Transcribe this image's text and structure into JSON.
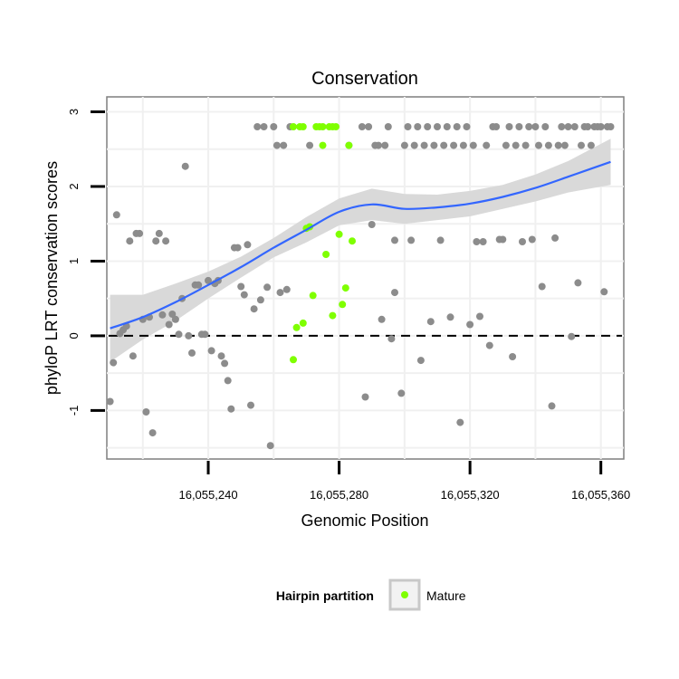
{
  "chart_data": {
    "type": "scatter",
    "title": "Conservation",
    "xlabel": "Genomic Position",
    "ylabel": "phyloP LRT conservation scores",
    "xlim": [
      16055209,
      16055367
    ],
    "ylim": [
      -1.65,
      3.2
    ],
    "x_ticks": [
      16055240,
      16055280,
      16055320,
      16055360
    ],
    "x_tick_labels": [
      "16,055,240",
      "16,055,280",
      "16,055,320",
      "16,055,360"
    ],
    "y_ticks": [
      -1,
      0,
      1,
      2,
      3
    ],
    "y_tick_labels": [
      "-1",
      "0",
      "1",
      "2",
      "3"
    ],
    "grid": true,
    "reference_line": {
      "y": 0,
      "style": "dashed"
    },
    "legend": {
      "title": "Hairpin partition",
      "placement": "bottom",
      "entries": [
        {
          "label": "Mature",
          "color": "#7fff00"
        }
      ]
    },
    "colors": {
      "other": "#8c8c8c",
      "mature": "#7fff00",
      "smooth": "#3366ff",
      "ribbon": "#d9d9d9"
    },
    "series": [
      {
        "name": "",
        "color": "#8c8c8c",
        "points": [
          [
            16055210,
            -0.88
          ],
          [
            16055211,
            -0.36
          ],
          [
            16055212,
            1.62
          ],
          [
            16055213,
            0.03
          ],
          [
            16055214,
            0.08
          ],
          [
            16055215,
            0.13
          ],
          [
            16055216,
            1.27
          ],
          [
            16055217,
            -0.27
          ],
          [
            16055218,
            1.37
          ],
          [
            16055219,
            1.37
          ],
          [
            16055220,
            0.22
          ],
          [
            16055221,
            -1.02
          ],
          [
            16055222,
            0.25
          ],
          [
            16055223,
            -1.3
          ],
          [
            16055224,
            1.27
          ],
          [
            16055225,
            1.37
          ],
          [
            16055226,
            0.28
          ],
          [
            16055227,
            1.27
          ],
          [
            16055228,
            0.15
          ],
          [
            16055229,
            0.29
          ],
          [
            16055230,
            0.22
          ],
          [
            16055231,
            0.02
          ],
          [
            16055232,
            0.5
          ],
          [
            16055233,
            2.27
          ],
          [
            16055234,
            0.0
          ],
          [
            16055235,
            -0.23
          ],
          [
            16055236,
            0.68
          ],
          [
            16055237,
            0.68
          ],
          [
            16055238,
            0.02
          ],
          [
            16055239,
            0.02
          ],
          [
            16055240,
            0.74
          ],
          [
            16055241,
            -0.2
          ],
          [
            16055242,
            0.7
          ],
          [
            16055243,
            0.74
          ],
          [
            16055244,
            -0.27
          ],
          [
            16055245,
            -0.37
          ],
          [
            16055246,
            -0.6
          ],
          [
            16055247,
            -0.98
          ],
          [
            16055248,
            1.18
          ],
          [
            16055249,
            1.18
          ],
          [
            16055250,
            0.66
          ],
          [
            16055251,
            0.55
          ],
          [
            16055252,
            1.22
          ],
          [
            16055253,
            -0.93
          ],
          [
            16055254,
            0.36
          ],
          [
            16055255,
            2.8
          ],
          [
            16055256,
            0.48
          ],
          [
            16055257,
            2.8
          ],
          [
            16055258,
            0.65
          ],
          [
            16055259,
            -1.47
          ],
          [
            16055260,
            2.8
          ],
          [
            16055261,
            2.55
          ],
          [
            16055262,
            0.58
          ],
          [
            16055263,
            2.55
          ],
          [
            16055264,
            0.62
          ],
          [
            16055265,
            2.8
          ],
          [
            16055271,
            2.55
          ],
          [
            16055283,
            2.55
          ],
          [
            16055287,
            2.8
          ],
          [
            16055288,
            -0.82
          ],
          [
            16055289,
            2.8
          ],
          [
            16055290,
            1.49
          ],
          [
            16055291,
            2.55
          ],
          [
            16055292,
            2.55
          ],
          [
            16055293,
            0.22
          ],
          [
            16055294,
            2.55
          ],
          [
            16055295,
            2.8
          ],
          [
            16055296,
            -0.04
          ],
          [
            16055297,
            0.58
          ],
          [
            16055297,
            1.28
          ],
          [
            16055299,
            -0.77
          ],
          [
            16055300,
            2.55
          ],
          [
            16055301,
            2.8
          ],
          [
            16055302,
            1.28
          ],
          [
            16055303,
            2.55
          ],
          [
            16055304,
            2.8
          ],
          [
            16055305,
            -0.33
          ],
          [
            16055306,
            2.55
          ],
          [
            16055307,
            2.8
          ],
          [
            16055308,
            0.19
          ],
          [
            16055309,
            2.55
          ],
          [
            16055310,
            2.8
          ],
          [
            16055311,
            1.28
          ],
          [
            16055312,
            2.55
          ],
          [
            16055313,
            2.8
          ],
          [
            16055314,
            0.25
          ],
          [
            16055315,
            2.55
          ],
          [
            16055316,
            2.8
          ],
          [
            16055317,
            -1.16
          ],
          [
            16055318,
            2.55
          ],
          [
            16055319,
            2.8
          ],
          [
            16055320,
            0.15
          ],
          [
            16055321,
            2.55
          ],
          [
            16055322,
            1.26
          ],
          [
            16055323,
            0.26
          ],
          [
            16055324,
            1.26
          ],
          [
            16055325,
            2.55
          ],
          [
            16055326,
            -0.13
          ],
          [
            16055327,
            2.8
          ],
          [
            16055328,
            2.8
          ],
          [
            16055329,
            1.29
          ],
          [
            16055330,
            1.29
          ],
          [
            16055331,
            2.55
          ],
          [
            16055332,
            2.8
          ],
          [
            16055333,
            -0.28
          ],
          [
            16055334,
            2.55
          ],
          [
            16055335,
            2.8
          ],
          [
            16055336,
            1.26
          ],
          [
            16055337,
            2.55
          ],
          [
            16055338,
            2.8
          ],
          [
            16055339,
            1.29
          ],
          [
            16055340,
            2.8
          ],
          [
            16055341,
            2.55
          ],
          [
            16055342,
            0.66
          ],
          [
            16055343,
            2.8
          ],
          [
            16055344,
            2.55
          ],
          [
            16055345,
            -0.94
          ],
          [
            16055346,
            1.31
          ],
          [
            16055347,
            2.55
          ],
          [
            16055348,
            2.8
          ],
          [
            16055349,
            2.55
          ],
          [
            16055350,
            2.8
          ],
          [
            16055351,
            -0.01
          ],
          [
            16055352,
            2.8
          ],
          [
            16055353,
            0.71
          ],
          [
            16055354,
            2.55
          ],
          [
            16055355,
            2.8
          ],
          [
            16055356,
            2.8
          ],
          [
            16055357,
            2.55
          ],
          [
            16055358,
            2.8
          ],
          [
            16055359,
            2.8
          ],
          [
            16055360,
            2.8
          ],
          [
            16055361,
            0.59
          ],
          [
            16055362,
            2.8
          ],
          [
            16055363,
            2.8
          ]
        ]
      },
      {
        "name": "Mature",
        "color": "#7fff00",
        "points": [
          [
            16055266,
            -0.32
          ],
          [
            16055266,
            2.8
          ],
          [
            16055267,
            0.11
          ],
          [
            16055268,
            2.8
          ],
          [
            16055269,
            2.8
          ],
          [
            16055269,
            0.17
          ],
          [
            16055270,
            1.44
          ],
          [
            16055271,
            1.46
          ],
          [
            16055272,
            0.54
          ],
          [
            16055273,
            2.8
          ],
          [
            16055274,
            2.8
          ],
          [
            16055275,
            2.8
          ],
          [
            16055275,
            2.55
          ],
          [
            16055276,
            1.09
          ],
          [
            16055277,
            2.8
          ],
          [
            16055278,
            2.8
          ],
          [
            16055278,
            0.27
          ],
          [
            16055279,
            2.8
          ],
          [
            16055280,
            1.36
          ],
          [
            16055281,
            0.42
          ],
          [
            16055282,
            0.64
          ],
          [
            16055283,
            2.55
          ],
          [
            16055284,
            1.27
          ]
        ]
      }
    ],
    "smooth": {
      "x": [
        16055210,
        16055220,
        16055230,
        16055240,
        16055250,
        16055260,
        16055270,
        16055280,
        16055290,
        16055300,
        16055310,
        16055320,
        16055330,
        16055340,
        16055350,
        16055363
      ],
      "y": [
        0.1,
        0.25,
        0.45,
        0.68,
        0.92,
        1.18,
        1.42,
        1.66,
        1.76,
        1.7,
        1.72,
        1.77,
        1.86,
        1.98,
        2.13,
        2.33
      ],
      "lower": [
        -0.35,
        -0.05,
        0.2,
        0.5,
        0.78,
        1.05,
        1.25,
        1.48,
        1.55,
        1.5,
        1.55,
        1.6,
        1.7,
        1.8,
        1.92,
        2.02
      ],
      "upper": [
        0.55,
        0.55,
        0.7,
        0.86,
        1.06,
        1.31,
        1.59,
        1.84,
        1.97,
        1.9,
        1.89,
        1.94,
        2.02,
        2.16,
        2.34,
        2.64
      ]
    }
  }
}
